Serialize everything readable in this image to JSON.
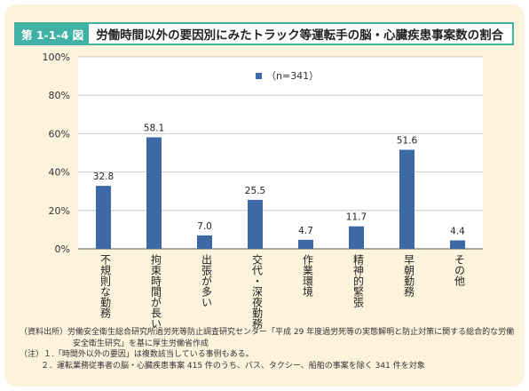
{
  "figure": {
    "label": "第 1-1-4 図",
    "title": "労働時間以外の要因別にみたトラック等運転手の脳・心臓疾患事案数の割合"
  },
  "chart_data": {
    "type": "bar",
    "categories": [
      "不規則な勤務",
      "拘束時間が長い",
      "出張が多い",
      "交代・深夜勤務",
      "作業環境",
      "精神的緊張",
      "早朝勤務",
      "その他"
    ],
    "values": [
      32.8,
      58.1,
      7.0,
      25.5,
      4.7,
      11.7,
      51.6,
      4.4
    ],
    "value_labels": [
      "32.8",
      "58.1",
      "7.0",
      "25.5",
      "4.7",
      "11.7",
      "51.6",
      "4.4"
    ],
    "series": [
      {
        "name": "（n=341）",
        "values": [
          32.8,
          58.1,
          7.0,
          25.5,
          4.7,
          11.7,
          51.6,
          4.4
        ]
      }
    ],
    "ylim": [
      0,
      100
    ],
    "yticks": [
      "0%",
      "20%",
      "40%",
      "60%",
      "80%",
      "100%"
    ],
    "grid": true,
    "legend": "top-center",
    "bar_color": "#3d6aa7"
  },
  "notes": {
    "source_1": "（資料出所）労働安全衛生総合研究所過労死等防止調査研究センター「平成 29 年度過労死等の実態解明と防止対策に関する総合的な労働",
    "source_2": "安全衛生研究」を基に厚生労働省作成",
    "note_1": "（注）１.「時間外以外の要因」は複数該当している事例もある。",
    "note_2": "２．運転業務従事者の脳・心臓疾患事案 415 件のうち、バス、タクシー、船舶の事案を除く 341 件を対象"
  }
}
